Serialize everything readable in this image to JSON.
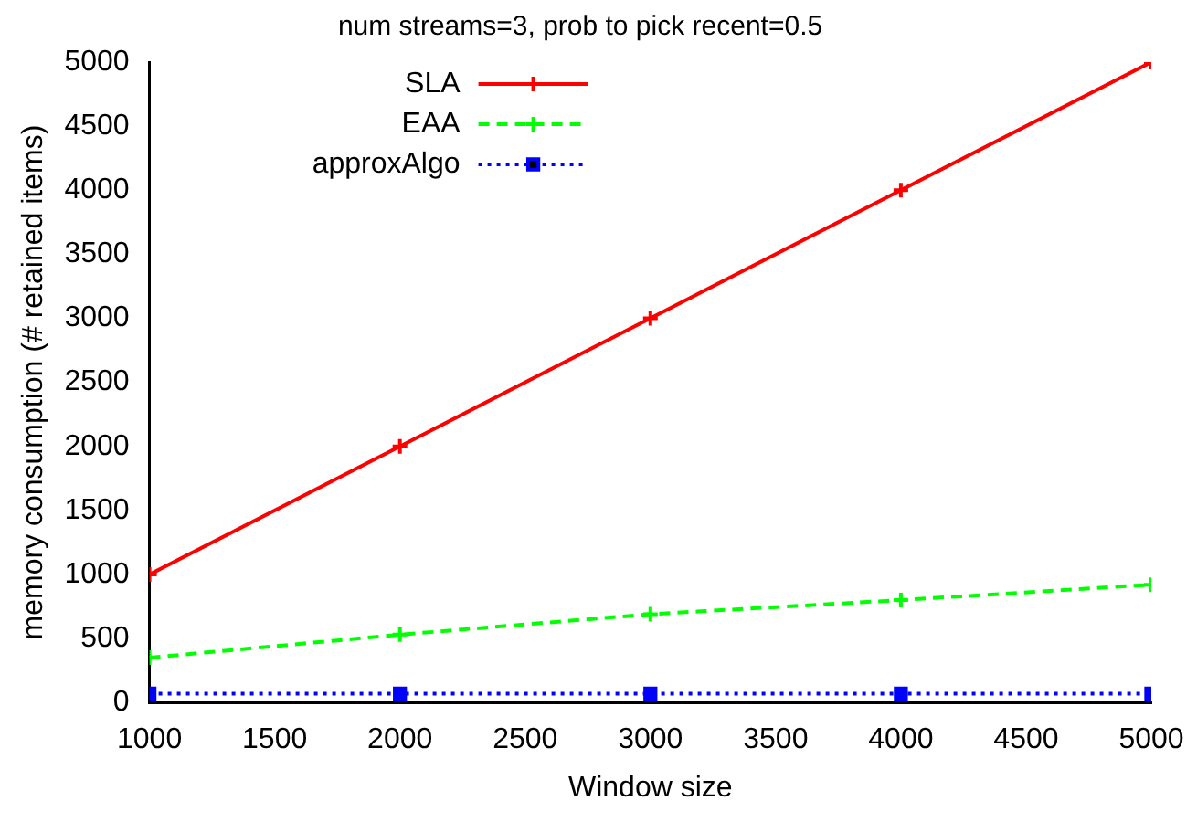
{
  "chart_data": {
    "type": "line",
    "title": "num streams=3, prob to pick recent=0.5",
    "xlabel": "Window size",
    "ylabel": "memory consumption (# retained items)",
    "x": [
      1000,
      2000,
      3000,
      4000,
      5000
    ],
    "series": [
      {
        "name": "SLA",
        "color": "#ff0000",
        "values": [
          1000,
          2000,
          3000,
          4000,
          5000
        ],
        "marker": "cross",
        "line_style": "solid"
      },
      {
        "name": "EAA",
        "color": "#00ff00",
        "values": [
          350,
          530,
          690,
          800,
          920
        ],
        "marker": "cross",
        "line_style": "dashed"
      },
      {
        "name": "approxAlgo",
        "color": "#0000ff",
        "values": [
          70,
          70,
          70,
          70,
          70
        ],
        "marker": "square",
        "line_style": "dotted"
      }
    ],
    "xlim": [
      1000,
      5000
    ],
    "xticks": [
      1000,
      1500,
      2000,
      2500,
      3000,
      3500,
      4000,
      4500,
      5000
    ],
    "ylim": [
      0,
      5000
    ],
    "yticks": [
      0,
      500,
      1000,
      1500,
      2000,
      2500,
      3000,
      3500,
      4000,
      4500,
      5000
    ],
    "grid": false,
    "legend": "top left"
  }
}
